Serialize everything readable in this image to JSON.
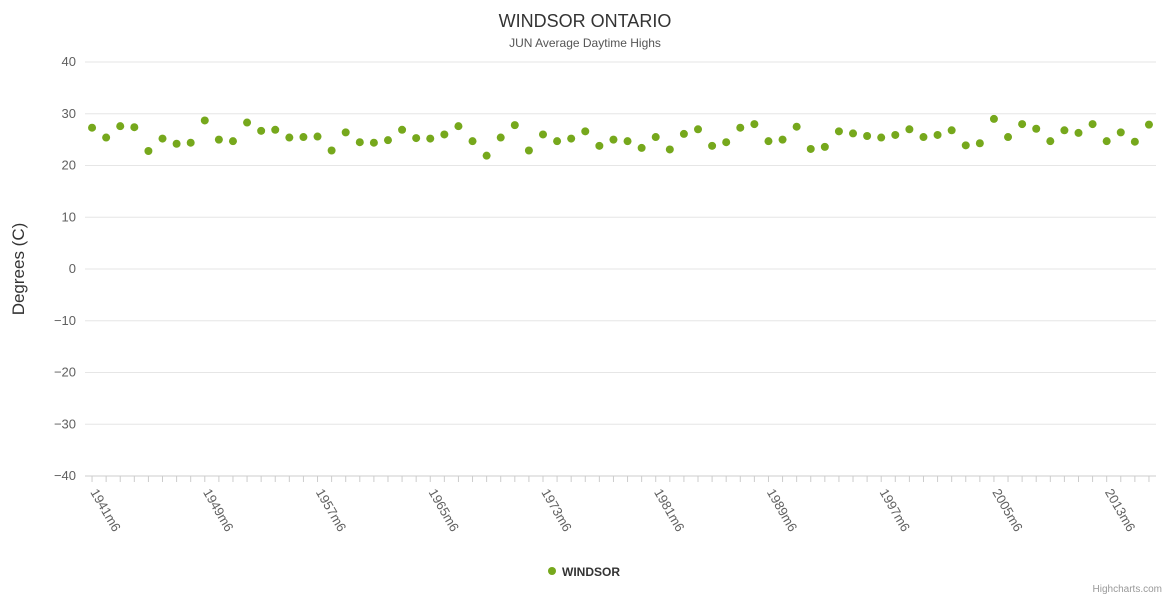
{
  "credits": "Highcharts.com",
  "chart_data": {
    "type": "scatter",
    "title": "WINDSOR ONTARIO",
    "subtitle": "JUN Average Daytime Highs",
    "xlabel": "",
    "ylabel": "Degrees (C)",
    "ylim": [
      -40,
      40
    ],
    "ytick_interval": 10,
    "grid": true,
    "legend_position": "bottom",
    "x_label_suffix": "m6",
    "x_label_step": 8,
    "x_tick_labels": [
      "1941m6",
      "1949m6",
      "1957m6",
      "1965m6",
      "1973m6",
      "1981m6",
      "1989m6",
      "1997m6",
      "2005m6",
      "2013m6"
    ],
    "x": [
      1941,
      1942,
      1943,
      1944,
      1945,
      1946,
      1947,
      1948,
      1949,
      1950,
      1951,
      1952,
      1953,
      1954,
      1955,
      1956,
      1957,
      1958,
      1959,
      1960,
      1961,
      1962,
      1963,
      1964,
      1965,
      1966,
      1967,
      1968,
      1969,
      1970,
      1971,
      1972,
      1973,
      1974,
      1975,
      1976,
      1977,
      1978,
      1979,
      1980,
      1981,
      1982,
      1983,
      1984,
      1985,
      1986,
      1987,
      1988,
      1989,
      1990,
      1991,
      1992,
      1993,
      1994,
      1995,
      1996,
      1997,
      1998,
      1999,
      2000,
      2001,
      2002,
      2003,
      2004,
      2005,
      2006,
      2007,
      2008,
      2009,
      2010,
      2011,
      2012,
      2013,
      2014,
      2015,
      2016
    ],
    "series": [
      {
        "name": "WINDSOR",
        "color": "#76A81C",
        "values": [
          27.3,
          25.4,
          27.6,
          27.4,
          22.8,
          25.2,
          24.2,
          24.4,
          28.7,
          25.0,
          24.7,
          28.3,
          26.7,
          26.9,
          25.4,
          25.5,
          25.6,
          22.9,
          26.4,
          24.5,
          24.4,
          24.9,
          26.9,
          25.3,
          25.2,
          26.0,
          27.6,
          24.7,
          21.9,
          25.4,
          27.8,
          22.9,
          26.0,
          24.7,
          25.2,
          26.6,
          23.8,
          25.0,
          24.7,
          23.4,
          25.5,
          23.1,
          26.1,
          27.0,
          23.8,
          24.5,
          27.3,
          28.0,
          24.7,
          25.0,
          27.5,
          23.2,
          23.6,
          26.6,
          26.2,
          25.7,
          25.4,
          25.9,
          27.0,
          25.5,
          25.9,
          26.8,
          23.9,
          24.3,
          29.0,
          25.5,
          28.0,
          27.1,
          24.7,
          26.8,
          26.3,
          28.0,
          24.7,
          26.4,
          24.6,
          27.9
        ]
      }
    ]
  }
}
